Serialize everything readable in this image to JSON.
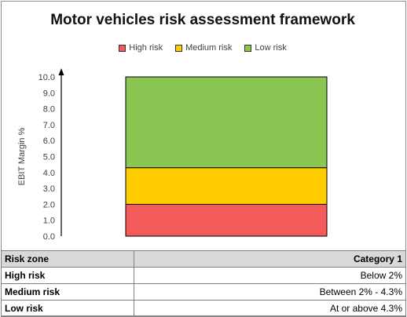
{
  "chart_data": {
    "type": "bar",
    "stacked": true,
    "title": "Motor vehicles risk assessment framework",
    "ylabel": "EBIT Margin %",
    "xlabel": "",
    "ylim": [
      0,
      10
    ],
    "yticks": [
      "0.0",
      "1.0",
      "2.0",
      "3.0",
      "4.0",
      "5.0",
      "6.0",
      "7.0",
      "8.0",
      "9.0",
      "10.0"
    ],
    "legend_position": "top",
    "grid": false,
    "series": [
      {
        "name": "High risk",
        "value": 2.0,
        "color": "#f35a5a"
      },
      {
        "name": "Medium risk",
        "value": 2.3,
        "color": "#ffcc00"
      },
      {
        "name": "Low risk",
        "value": 5.7,
        "color": "#8bc653"
      }
    ]
  },
  "table": {
    "headers": [
      "Risk zone",
      "Category 1"
    ],
    "rows": [
      [
        "High risk",
        "Below 2%"
      ],
      [
        "Medium risk",
        "Between 2% - 4.3%"
      ],
      [
        "Low risk",
        "At or above 4.3%"
      ]
    ]
  }
}
